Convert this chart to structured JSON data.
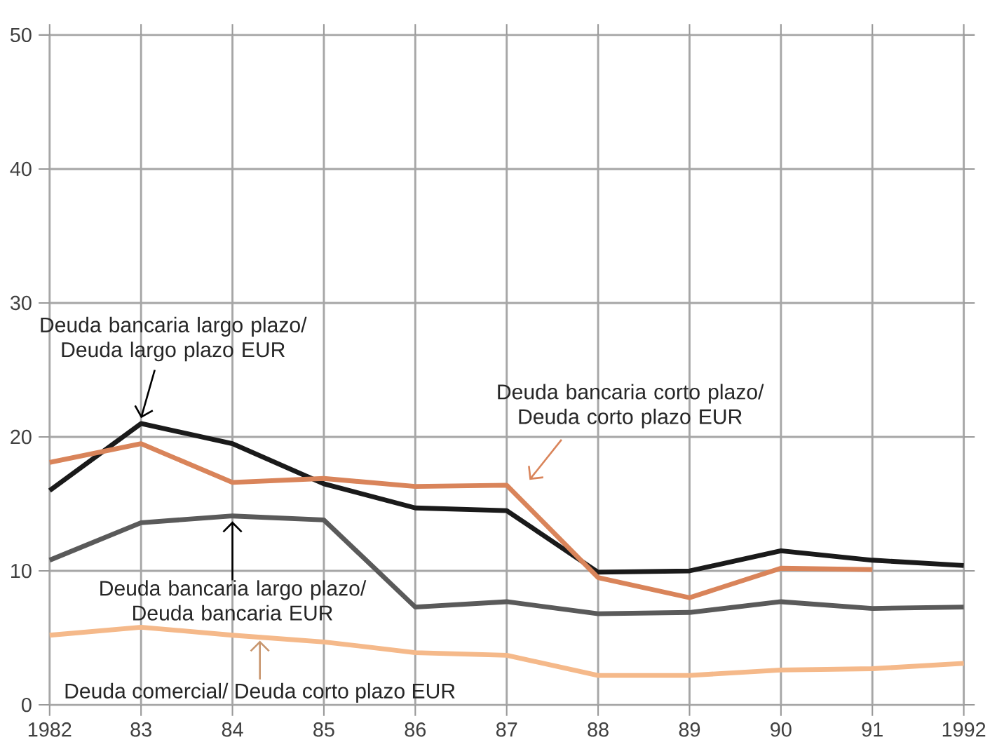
{
  "chart_data": {
    "type": "line",
    "x": [
      1982,
      1983,
      1984,
      1985,
      1986,
      1987,
      1988,
      1989,
      1990,
      1991,
      1992
    ],
    "series": [
      {
        "name": "Deuda bancaria largo plazo/ Deuda largo plazo EUR",
        "color": "#1a1a1a",
        "values": [
          16,
          21,
          19.5,
          16.5,
          14.7,
          14.5,
          9.9,
          10,
          11.5,
          10.8,
          10.4
        ]
      },
      {
        "name": "Deuda bancaria corto plazo/ Deuda corto plazo EUR",
        "color": "#d9845a",
        "values": [
          18.1,
          19.5,
          16.6,
          16.9,
          16.3,
          16.4,
          9.5,
          8,
          10.2,
          10.1,
          null
        ]
      },
      {
        "name": "Deuda bancaria largo plazo/ Deuda bancaria EUR",
        "color": "#5a5a5a",
        "values": [
          10.8,
          13.6,
          14.1,
          13.8,
          7.3,
          7.7,
          6.8,
          6.9,
          7.7,
          7.2,
          7.3
        ]
      },
      {
        "name": "Deuda comercial/ Deuda corto plazo EUR",
        "color": "#f5b98a",
        "values": [
          5.2,
          5.8,
          5.2,
          4.7,
          3.9,
          3.7,
          2.2,
          2.2,
          2.6,
          2.7,
          3.1
        ]
      }
    ],
    "xlim": [
      1982,
      1992
    ],
    "xticks": [
      1982,
      {
        "value": 1983,
        "label": "83"
      },
      {
        "value": 1984,
        "label": "84"
      },
      {
        "value": 1985,
        "label": "85"
      },
      {
        "value": 1986,
        "label": "86"
      },
      {
        "value": 1987,
        "label": "87"
      },
      {
        "value": 1988,
        "label": "88"
      },
      {
        "value": 1989,
        "label": "89"
      },
      {
        "value": 1990,
        "label": "90"
      },
      {
        "value": 1991,
        "label": "91"
      },
      1992
    ],
    "ylim": [
      0,
      50
    ],
    "yticks": [
      0,
      10,
      20,
      30,
      40,
      50
    ],
    "grid": true,
    "legend": false,
    "marker": "none",
    "line_style": "solid"
  }
}
